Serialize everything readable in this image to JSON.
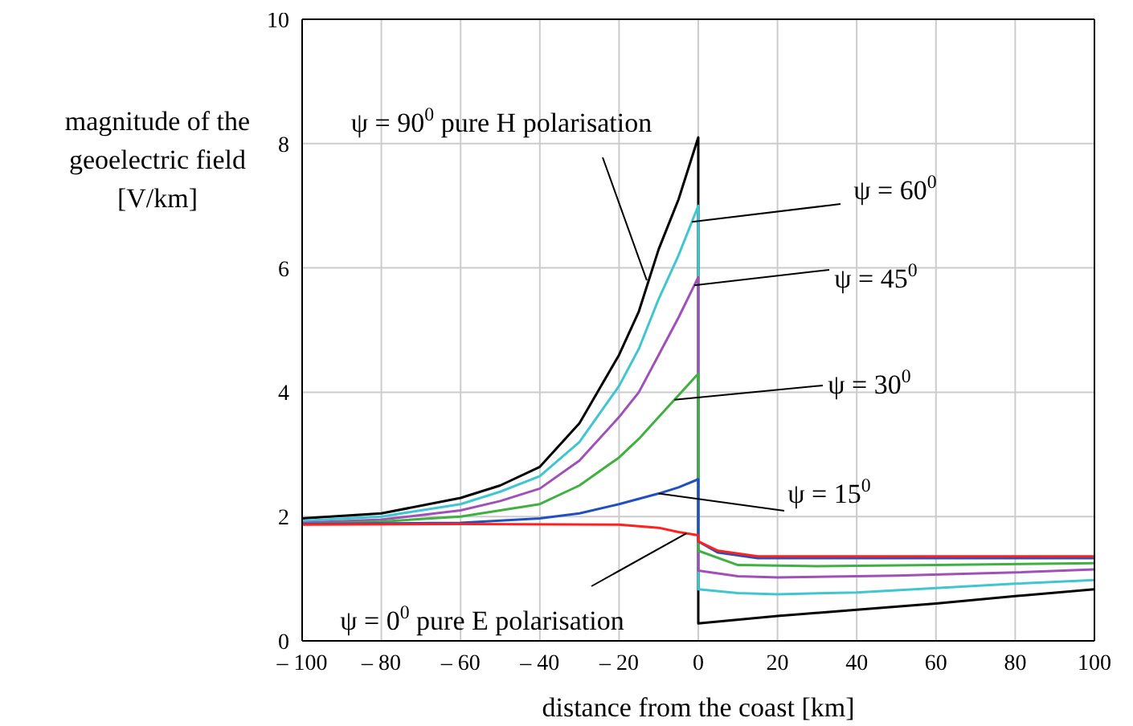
{
  "chart_data": {
    "type": "line",
    "xlabel": "distance from the coast [km]",
    "ylabel": "magnitude of the geoelectric field [V/km]",
    "xlim": [
      -100,
      100
    ],
    "xticks": [
      {
        "value": -100,
        "label": "– 100"
      },
      {
        "value": -80,
        "label": "– 80"
      },
      {
        "value": -60,
        "label": "– 60"
      },
      {
        "value": -40,
        "label": "– 40"
      },
      {
        "value": -20,
        "label": "– 20"
      },
      0,
      20,
      40,
      60,
      80,
      100
    ],
    "ylim": [
      0,
      10
    ],
    "yticks": [
      0,
      2,
      4,
      6,
      8,
      10
    ],
    "grid": true,
    "legend": false,
    "marker": "none",
    "line_style": "solid",
    "series": [
      {
        "color": "#000000",
        "x": [
          -100,
          -80,
          -60,
          -50,
          -40,
          -30,
          -20,
          -15,
          -10,
          -5,
          0,
          0,
          20,
          40,
          60,
          80,
          100
        ],
        "values": [
          1.97,
          2.05,
          2.3,
          2.5,
          2.8,
          3.5,
          4.6,
          5.3,
          6.3,
          7.1,
          8.1,
          0.28,
          0.4,
          0.5,
          0.6,
          0.72,
          0.83
        ]
      },
      {
        "color": "#3fc6d0",
        "x": [
          -100,
          -80,
          -60,
          -50,
          -40,
          -30,
          -20,
          -15,
          -10,
          -5,
          0,
          0,
          10,
          20,
          40,
          60,
          80,
          100
        ],
        "values": [
          1.93,
          2.0,
          2.2,
          2.4,
          2.65,
          3.2,
          4.1,
          4.7,
          5.5,
          6.2,
          7.0,
          0.83,
          0.77,
          0.75,
          0.78,
          0.85,
          0.92,
          0.98
        ]
      },
      {
        "color": "#a050b8",
        "x": [
          -100,
          -80,
          -60,
          -50,
          -40,
          -30,
          -20,
          -15,
          -10,
          -5,
          0,
          0,
          10,
          20,
          50,
          80,
          100
        ],
        "values": [
          1.9,
          1.95,
          2.1,
          2.25,
          2.45,
          2.9,
          3.6,
          4.0,
          4.6,
          5.2,
          5.85,
          1.13,
          1.04,
          1.02,
          1.05,
          1.1,
          1.15
        ]
      },
      {
        "color": "#40b040",
        "x": [
          -100,
          -80,
          -60,
          -50,
          -40,
          -30,
          -20,
          -15,
          -10,
          -5,
          0,
          0,
          10,
          30,
          60,
          100
        ],
        "values": [
          1.88,
          1.92,
          2.0,
          2.1,
          2.2,
          2.5,
          2.95,
          3.25,
          3.6,
          3.95,
          4.3,
          1.45,
          1.22,
          1.2,
          1.22,
          1.25
        ]
      },
      {
        "color": "#2050c0",
        "x": [
          -100,
          -60,
          -40,
          -30,
          -20,
          -10,
          -5,
          0,
          0,
          5,
          15,
          100
        ],
        "values": [
          1.88,
          1.9,
          1.97,
          2.05,
          2.2,
          2.37,
          2.47,
          2.6,
          1.6,
          1.42,
          1.33,
          1.33
        ]
      },
      {
        "color": "#ff2020",
        "x": [
          -100,
          -60,
          -20,
          -10,
          -5,
          0,
          0,
          5,
          15,
          100
        ],
        "values": [
          1.87,
          1.88,
          1.87,
          1.82,
          1.75,
          1.7,
          1.6,
          1.45,
          1.36,
          1.36
        ]
      }
    ],
    "annotations": [
      {
        "text": "ψ = 90$^{0}$ pure H polarisation",
        "x": -13,
        "y": 5.8
      },
      {
        "text": "ψ = 60$^{0}$",
        "x": -1.6,
        "y": 6.74
      },
      {
        "text": "ψ = 45$^{0}$",
        "x": -1,
        "y": 5.72
      },
      {
        "text": "ψ = 30$^{0}$",
        "x": -6,
        "y": 3.88
      },
      {
        "text": "ψ = 15$^{0}$",
        "x": -10,
        "y": 2.37
      },
      {
        "text": "ψ = 0$^{0}$ pure E polarisation",
        "x": -3,
        "y": 1.73
      }
    ]
  }
}
